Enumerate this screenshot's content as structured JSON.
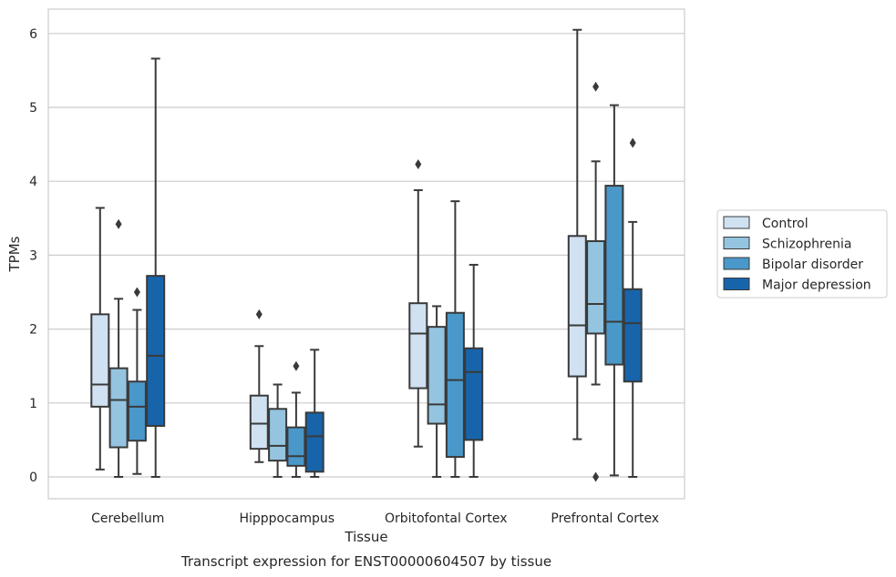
{
  "caption": "Transcript expression for ENST00000604507 by tissue",
  "chart_data": {
    "type": "box",
    "title": "",
    "xlabel": "Tissue",
    "ylabel": "TPMs",
    "ylim": [
      -0.3,
      6.35
    ],
    "yticks": [
      "0",
      "1",
      "2",
      "3",
      "4",
      "5",
      "6"
    ],
    "grid": "horizontal",
    "legend_position": "right",
    "categories": [
      "Cerebellum",
      "Hipppocampus",
      "Orbitofontal Cortex",
      "Prefrontal Cortex"
    ],
    "series": [
      {
        "name": "Control",
        "color": "#d0e1f2",
        "boxes": [
          {
            "whislo": 0.1,
            "q1": 0.95,
            "med": 1.25,
            "q3": 2.2,
            "whishi": 3.64,
            "fliers": []
          },
          {
            "whislo": 0.2,
            "q1": 0.38,
            "med": 0.72,
            "q3": 1.1,
            "whishi": 1.77,
            "fliers": [
              2.2
            ]
          },
          {
            "whislo": 0.41,
            "q1": 1.2,
            "med": 1.94,
            "q3": 2.35,
            "whishi": 3.88,
            "fliers": [
              4.23
            ]
          },
          {
            "whislo": 0.51,
            "q1": 1.36,
            "med": 2.05,
            "q3": 3.26,
            "whishi": 6.05,
            "fliers": []
          }
        ]
      },
      {
        "name": "Schizophrenia",
        "color": "#94c4df",
        "boxes": [
          {
            "whislo": 0.0,
            "q1": 0.4,
            "med": 1.04,
            "q3": 1.47,
            "whishi": 2.41,
            "fliers": [
              3.42
            ]
          },
          {
            "whislo": 0.0,
            "q1": 0.22,
            "med": 0.42,
            "q3": 0.92,
            "whishi": 1.25,
            "fliers": []
          },
          {
            "whislo": 0.0,
            "q1": 0.72,
            "med": 0.98,
            "q3": 2.03,
            "whishi": 2.31,
            "fliers": []
          },
          {
            "whislo": 1.25,
            "q1": 1.94,
            "med": 2.34,
            "q3": 3.19,
            "whishi": 4.27,
            "fliers": [
              5.28,
              0.0
            ]
          }
        ]
      },
      {
        "name": "Bipolar disorder",
        "color": "#4a98c9",
        "boxes": [
          {
            "whislo": 0.04,
            "q1": 0.49,
            "med": 0.95,
            "q3": 1.29,
            "whishi": 2.26,
            "fliers": [
              2.5
            ]
          },
          {
            "whislo": 0.0,
            "q1": 0.15,
            "med": 0.28,
            "q3": 0.67,
            "whishi": 1.14,
            "fliers": [
              1.5
            ]
          },
          {
            "whislo": 0.0,
            "q1": 0.27,
            "med": 1.31,
            "q3": 2.22,
            "whishi": 3.73,
            "fliers": []
          },
          {
            "whislo": 0.02,
            "q1": 1.52,
            "med": 2.1,
            "q3": 3.94,
            "whishi": 5.03,
            "fliers": []
          }
        ]
      },
      {
        "name": "Major depression",
        "color": "#1764ab",
        "boxes": [
          {
            "whislo": 0.0,
            "q1": 0.69,
            "med": 1.64,
            "q3": 2.72,
            "whishi": 5.66,
            "fliers": []
          },
          {
            "whislo": 0.0,
            "q1": 0.07,
            "med": 0.55,
            "q3": 0.87,
            "whishi": 1.72,
            "fliers": []
          },
          {
            "whislo": 0.0,
            "q1": 0.5,
            "med": 1.42,
            "q3": 1.74,
            "whishi": 2.87,
            "fliers": []
          },
          {
            "whislo": 0.0,
            "q1": 1.29,
            "med": 2.08,
            "q3": 2.54,
            "whishi": 3.45,
            "fliers": [
              4.52
            ]
          }
        ]
      }
    ]
  }
}
